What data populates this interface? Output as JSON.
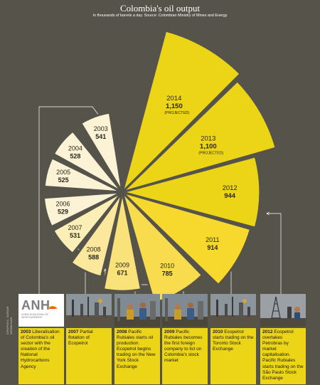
{
  "title": "Colombia's oil output",
  "subtitle": "In thousands of barrels a day. Source: Colombian Ministry of Mines and Energy",
  "credit": "GRAPHIC: SARAH WEBB/NAR",
  "colors": {
    "background": "#55534a",
    "accent": "#ecd416",
    "connector": "#ffffff"
  },
  "chart_data": {
    "type": "pie",
    "variant": "radial bar (polar area)",
    "unit": "thousands of barrels a day",
    "series": [
      {
        "year": "2003",
        "value": 541,
        "note": ""
      },
      {
        "year": "2004",
        "value": 528,
        "note": ""
      },
      {
        "year": "2005",
        "value": 525,
        "note": ""
      },
      {
        "year": "2006",
        "value": 529,
        "note": ""
      },
      {
        "year": "2007",
        "value": 531,
        "note": ""
      },
      {
        "year": "2008",
        "value": 588,
        "note": ""
      },
      {
        "year": "2009",
        "value": 671,
        "note": ""
      },
      {
        "year": "2010",
        "value": 785,
        "note": ""
      },
      {
        "year": "2011",
        "value": 914,
        "note": ""
      },
      {
        "year": "2012",
        "value": 944,
        "note": ""
      },
      {
        "year": "2013",
        "value": 1100,
        "note": "(PROJECTED)"
      },
      {
        "year": "2014",
        "value": 1150,
        "note": "(PROJECTED)"
      }
    ],
    "colors": [
      "#fcf3d6",
      "#fcf3d6",
      "#fcf3d6",
      "#fcf3d6",
      "#fbeeb6",
      "#fbe89c",
      "#fae27a",
      "#f8dc4d",
      "#f6d92c",
      "#ecd416",
      "#ecd416",
      "#ecd416"
    ]
  },
  "events": [
    {
      "year": "2003",
      "text": "Liberalisation of Colombia's oil sector with the creation of the National Hydrocarbons Agency",
      "photo": "anh-logo",
      "logo_letters": "ANH",
      "logo_caption": "AGENCIA NACIONAL DE HIDROCARBUROS"
    },
    {
      "year": "2007",
      "text": "Partial flotation of Ecopetrol",
      "photo": "refinery-photo"
    },
    {
      "year": "2008",
      "text": "Pacific Rubiales starts oil production. Ecopetrol begins trading on the New York Stock Exchange",
      "photo": "workers-photo"
    },
    {
      "year": "2009",
      "text": "Pacific Rubiales becomes the first foreign company to list on Colombia's stock market",
      "photo": "workers-photo"
    },
    {
      "year": "2010",
      "text": "Ecopetrol starts trading on the Toronto Stock Exchange",
      "photo": "refinery-photo"
    },
    {
      "year": "2012",
      "text": "Ecopetrol overtakes Petrobras by market capitalisation. Pacific Rubiales starts trading on the São Paulo Stock Exchange",
      "photo": "rig-photo"
    }
  ]
}
